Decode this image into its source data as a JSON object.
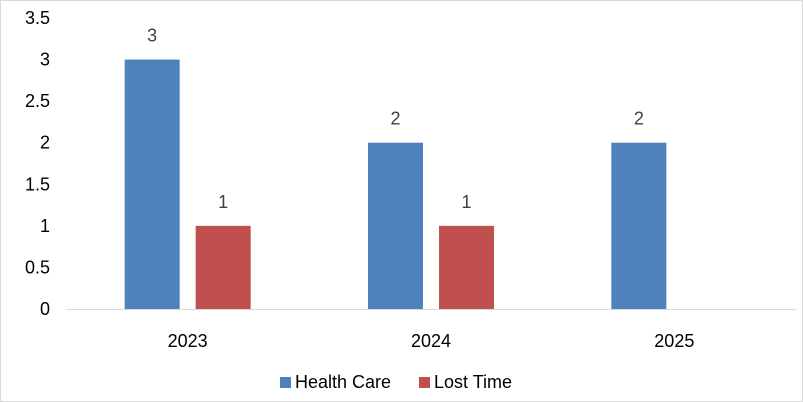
{
  "chart_data": {
    "type": "bar",
    "title": "",
    "xlabel": "",
    "ylabel": "",
    "categories": [
      "2023",
      "2024",
      "2025"
    ],
    "ylim": [
      0,
      3.5
    ],
    "yticks": [
      0,
      0.5,
      1,
      1.5,
      2,
      2.5,
      3,
      3.5
    ],
    "ytick_labels": [
      "0",
      "0.5",
      "1",
      "1.5",
      "2",
      "2.5",
      "3",
      "3.5"
    ],
    "grid": false,
    "legend_position": "bottom",
    "series": [
      {
        "name": "Health Care",
        "color": "#4f81bd",
        "values": [
          3,
          2,
          2
        ],
        "labels": [
          "3",
          "2",
          "2"
        ]
      },
      {
        "name": "Lost Time",
        "color": "#c0504d",
        "values": [
          1,
          1,
          null
        ],
        "labels": [
          "1",
          "1",
          ""
        ]
      }
    ]
  }
}
